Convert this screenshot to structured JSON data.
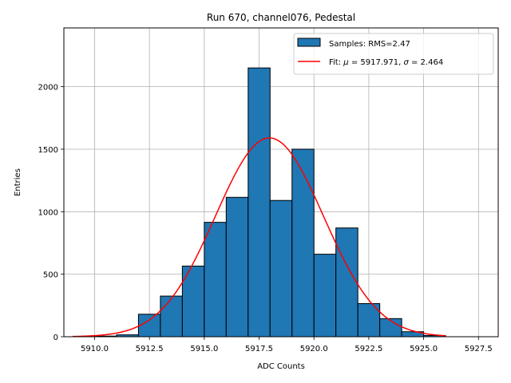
{
  "chart_data": {
    "type": "bar",
    "title": "Run 670, channel076, Pedestal",
    "xlabel": "ADC Counts",
    "ylabel": "Entries",
    "xlim": [
      5908.6,
      5928.4
    ],
    "ylim": [
      0,
      2470
    ],
    "x_ticks": [
      5910.0,
      5912.5,
      5915.0,
      5917.5,
      5920.0,
      5922.5,
      5925.0,
      5927.5
    ],
    "x_tick_labels": [
      "5910.0",
      "5912.5",
      "5915.0",
      "5917.5",
      "5920.0",
      "5922.5",
      "5925.0",
      "5927.5"
    ],
    "y_ticks": [
      0,
      500,
      1000,
      1500,
      2000
    ],
    "y_tick_labels": [
      "0",
      "500",
      "1000",
      "1500",
      "2000"
    ],
    "grid": true,
    "legend_position": "top-right",
    "bin_width": 1.0,
    "bins": [
      {
        "x_left": 5910,
        "value": 5
      },
      {
        "x_left": 5911,
        "value": 15
      },
      {
        "x_left": 5912,
        "value": 180
      },
      {
        "x_left": 5913,
        "value": 325
      },
      {
        "x_left": 5914,
        "value": 565
      },
      {
        "x_left": 5915,
        "value": 915
      },
      {
        "x_left": 5916,
        "value": 1115
      },
      {
        "x_left": 5917,
        "value": 2150
      },
      {
        "x_left": 5918,
        "value": 1090
      },
      {
        "x_left": 5919,
        "value": 1500
      },
      {
        "x_left": 5920,
        "value": 660
      },
      {
        "x_left": 5921,
        "value": 870
      },
      {
        "x_left": 5922,
        "value": 265
      },
      {
        "x_left": 5923,
        "value": 145
      },
      {
        "x_left": 5924,
        "value": 40
      },
      {
        "x_left": 5925,
        "value": 10
      }
    ],
    "fit": {
      "mu": 5917.971,
      "sigma": 2.464,
      "amplitude": 1590,
      "x_range": [
        5909,
        5926
      ]
    },
    "series": [
      {
        "name": "Samples: RMS=2.47",
        "kind": "histogram",
        "color": "#1f77b4",
        "edgecolor": "#000000"
      },
      {
        "name": "Fit: μ = 5917.971, σ = 2.464",
        "kind": "line",
        "color": "#ff0000"
      }
    ],
    "legend": {
      "samples_label": "Samples: RMS=2.47",
      "fit_prefix": "Fit: ",
      "mu_symbol": "μ",
      "mu_text": " = 5917.971, ",
      "sigma_symbol": "σ",
      "sigma_text": " = 2.464"
    }
  }
}
